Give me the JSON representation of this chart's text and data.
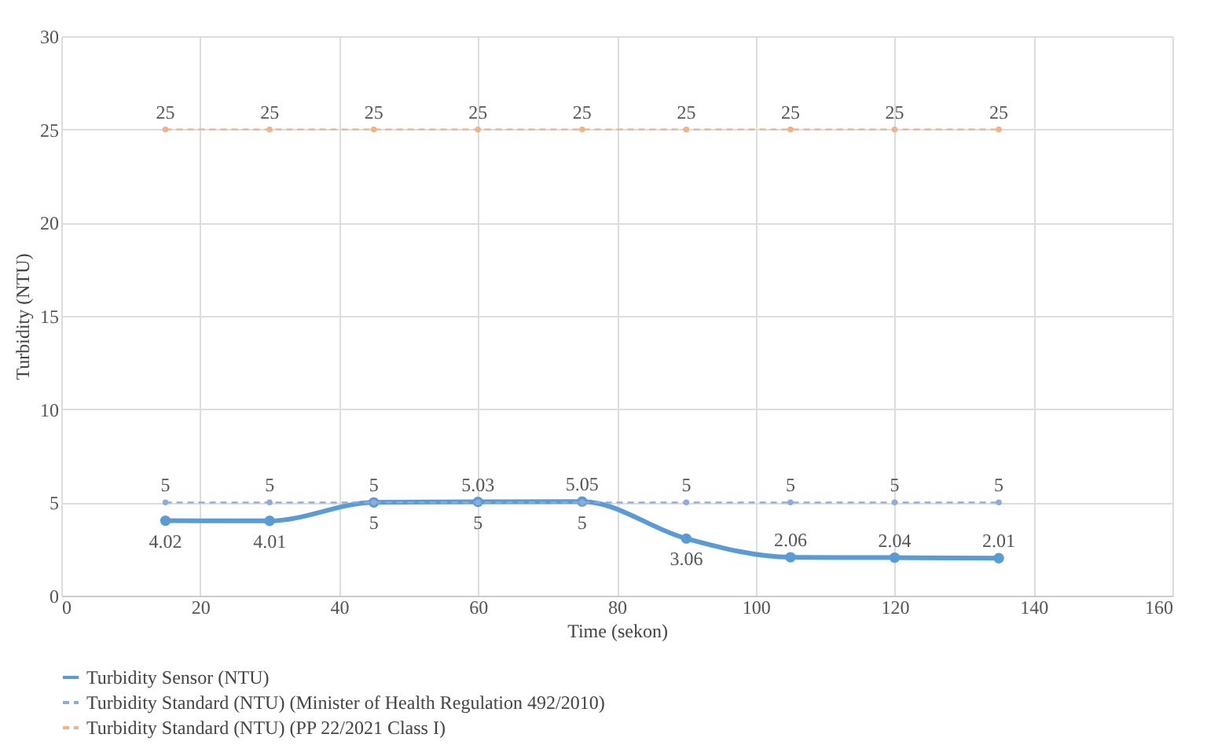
{
  "chart_data": {
    "type": "line",
    "xlabel": "Time (sekon)",
    "ylabel": "Turbidity (NTU)",
    "x": [
      15,
      30,
      45,
      60,
      75,
      90,
      105,
      120,
      135
    ],
    "series": [
      {
        "name": "Turbidity Sensor (NTU)",
        "color": "#5b9bd5",
        "line_style": "solid",
        "values": [
          4.02,
          4.01,
          5,
          5.03,
          5.05,
          3.06,
          2.06,
          2.04,
          2.01
        ]
      },
      {
        "name": "Turbidity Standard (NTU) (Minister of Health Regulation 492/2010)",
        "color": "#8faadc",
        "line_style": "dashed",
        "values": [
          5,
          5,
          5,
          5,
          5,
          5,
          5,
          5,
          5
        ]
      },
      {
        "name": "Turbidity Standard (NTU) (PP 22/2021 Class I)",
        "color": "#f4b183",
        "line_style": "dashed",
        "values": [
          25,
          25,
          25,
          25,
          25,
          25,
          25,
          25,
          25
        ]
      }
    ],
    "xlim": [
      0,
      160
    ],
    "xticks": [
      0,
      20,
      40,
      60,
      80,
      100,
      120,
      140,
      160
    ],
    "ylim": [
      0,
      30
    ],
    "yticks": [
      0,
      5,
      10,
      15,
      20,
      25,
      30
    ],
    "grid": true,
    "legend": "bottom",
    "marker": "circle",
    "data_labels": true
  }
}
